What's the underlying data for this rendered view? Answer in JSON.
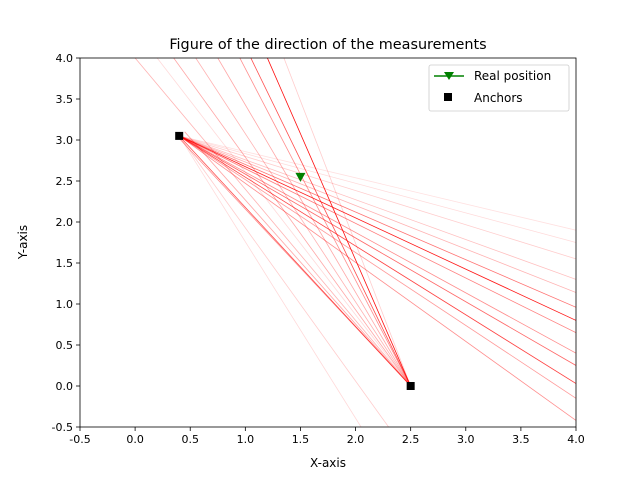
{
  "chart_data": {
    "type": "line",
    "title": "Figure of the direction of the measurements",
    "xlabel": "X-axis",
    "ylabel": "Y-axis",
    "xlim": [
      -0.5,
      4.0
    ],
    "ylim": [
      -0.5,
      4.0
    ],
    "x_ticks": [
      "-0.5",
      "0.0",
      "0.5",
      "1.0",
      "1.5",
      "2.0",
      "2.5",
      "3.0",
      "3.5",
      "4.0"
    ],
    "y_ticks": [
      "-0.5",
      "0.0",
      "0.5",
      "1.0",
      "1.5",
      "2.0",
      "2.5",
      "3.0",
      "3.5",
      "4.0"
    ],
    "grid": false,
    "legend_position": "top-right",
    "legend": [
      {
        "label": "Real position",
        "marker": "triangle-down",
        "color": "#008000"
      },
      {
        "label": "Anchors",
        "marker": "square",
        "color": "#000000"
      }
    ],
    "line_color": "#ff0000",
    "real_position": {
      "x": 1.5,
      "y": 2.55
    },
    "anchors": [
      {
        "x": 0.4,
        "y": 3.05
      },
      {
        "x": 2.5,
        "y": 0.0
      }
    ],
    "measurement_rays": [
      {
        "anchor": 0,
        "end": [
          4.0,
          0.8
        ],
        "opacity": 0.9
      },
      {
        "anchor": 0,
        "end": [
          4.0,
          0.96
        ],
        "opacity": 0.55
      },
      {
        "anchor": 0,
        "end": [
          4.0,
          1.14
        ],
        "opacity": 0.3
      },
      {
        "anchor": 0,
        "end": [
          4.0,
          1.3
        ],
        "opacity": 0.25
      },
      {
        "anchor": 0,
        "end": [
          4.0,
          1.55
        ],
        "opacity": 0.2
      },
      {
        "anchor": 0,
        "end": [
          4.0,
          1.75
        ],
        "opacity": 0.15
      },
      {
        "anchor": 0,
        "end": [
          4.0,
          1.9
        ],
        "opacity": 0.12
      },
      {
        "anchor": 0,
        "end": [
          4.0,
          0.65
        ],
        "opacity": 0.5
      },
      {
        "anchor": 0,
        "end": [
          4.0,
          0.4
        ],
        "opacity": 0.45
      },
      {
        "anchor": 0,
        "end": [
          4.0,
          0.25
        ],
        "opacity": 0.6
      },
      {
        "anchor": 0,
        "end": [
          4.0,
          0.03
        ],
        "opacity": 0.75
      },
      {
        "anchor": 0,
        "end": [
          4.0,
          -0.15
        ],
        "opacity": 0.4
      },
      {
        "anchor": 0,
        "end": [
          4.0,
          -0.42
        ],
        "opacity": 0.45
      },
      {
        "anchor": 0,
        "end": [
          2.5,
          0.0
        ],
        "opacity": 0.7
      },
      {
        "anchor": 0,
        "end": [
          2.3,
          -0.5
        ],
        "opacity": 0.2
      },
      {
        "anchor": 0,
        "end": [
          2.05,
          -0.5
        ],
        "opacity": 0.15
      },
      {
        "anchor": 1,
        "end": [
          1.2,
          4.0
        ],
        "opacity": 0.95
      },
      {
        "anchor": 1,
        "end": [
          1.05,
          4.0
        ],
        "opacity": 0.7
      },
      {
        "anchor": 1,
        "end": [
          0.95,
          4.0
        ],
        "opacity": 0.45
      },
      {
        "anchor": 1,
        "end": [
          0.75,
          4.0
        ],
        "opacity": 0.35
      },
      {
        "anchor": 1,
        "end": [
          0.55,
          4.0
        ],
        "opacity": 0.3
      },
      {
        "anchor": 1,
        "end": [
          0.35,
          4.0
        ],
        "opacity": 0.35
      },
      {
        "anchor": 1,
        "end": [
          0.0,
          4.0
        ],
        "opacity": 0.3
      },
      {
        "anchor": 1,
        "end": [
          0.2,
          4.0
        ],
        "opacity": 0.15
      },
      {
        "anchor": 1,
        "end": [
          1.35,
          4.0
        ],
        "opacity": 0.2
      },
      {
        "anchor": 1,
        "end": [
          0.45,
          3.1
        ],
        "opacity": 0.35
      },
      {
        "anchor": 1,
        "end": [
          0.4,
          3.02
        ],
        "opacity": 0.45
      }
    ]
  }
}
